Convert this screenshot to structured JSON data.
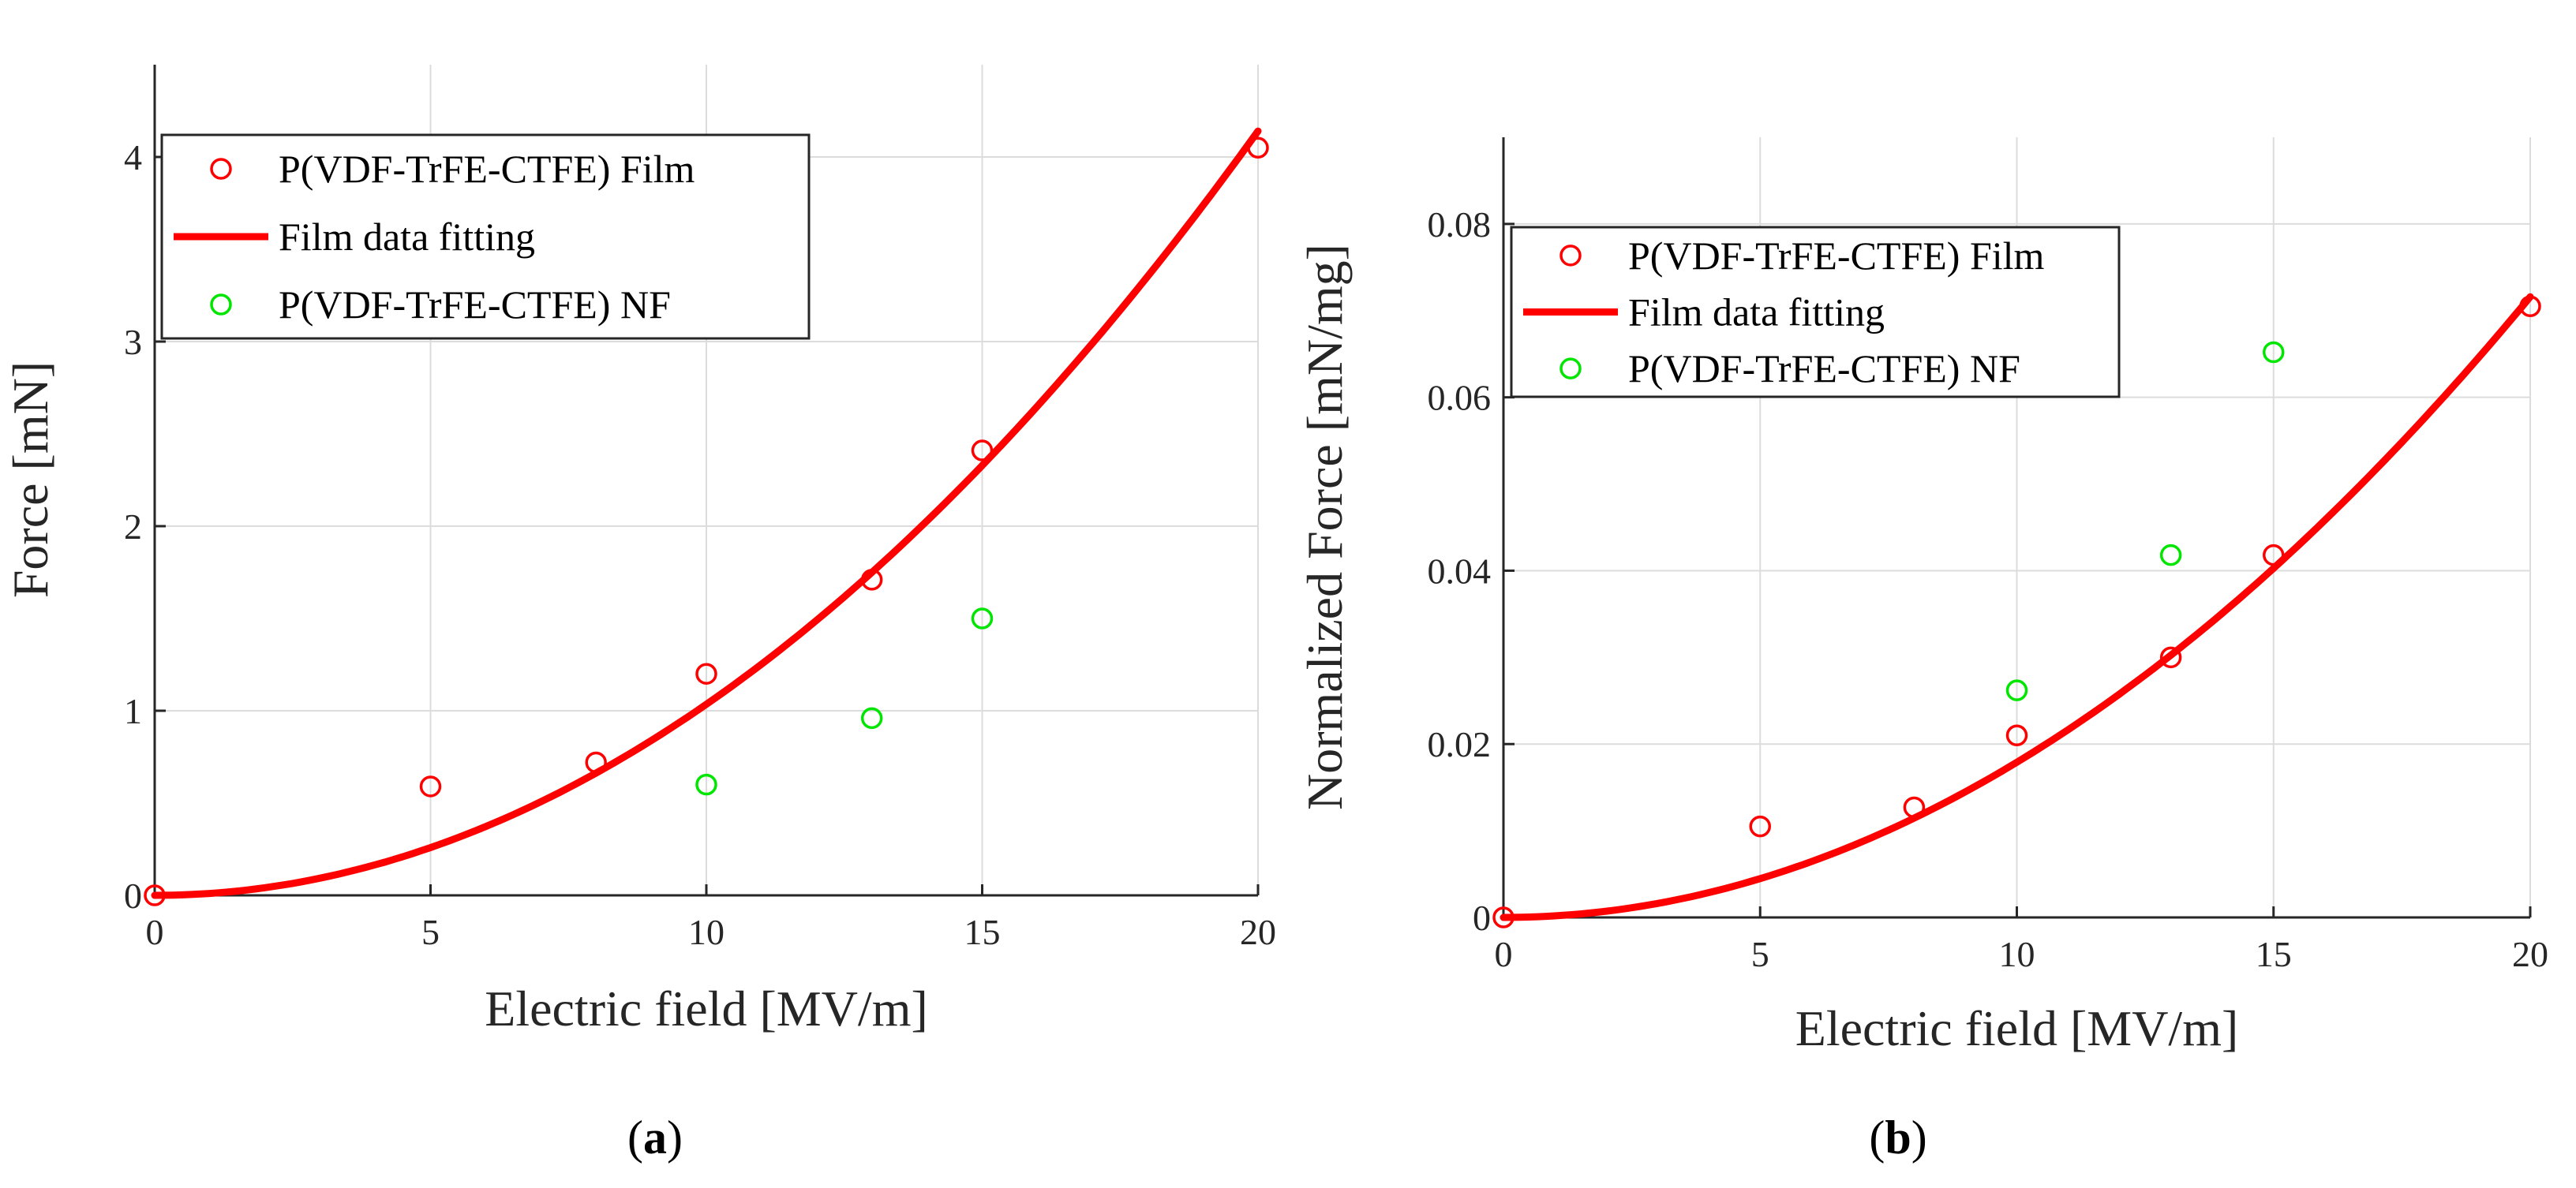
{
  "colors": {
    "film": "#ff0000",
    "nf": "#00e600",
    "fit": "#ff0000"
  },
  "chart_data": [
    {
      "type": "scatter",
      "panel_label": "a",
      "xlabel": "Electric field [MV/m]",
      "ylabel": "Force [mN]",
      "xlim": [
        0,
        20
      ],
      "ylim": [
        0,
        4.5
      ],
      "xticks": [
        "0",
        "5",
        "10",
        "15",
        "20"
      ],
      "yticks": [
        "0",
        "1",
        "2",
        "3",
        "4"
      ],
      "grid": true,
      "legend_position": "top-left",
      "legend": [
        "P(VDF-TrFE-CTFE) Film",
        "Film data fitting",
        "P(VDF-TrFE-CTFE) NF"
      ],
      "series": [
        {
          "name": "P(VDF-TrFE-CTFE) Film",
          "kind": "markers",
          "x": [
            0,
            5,
            8,
            10,
            13,
            15,
            20
          ],
          "y": [
            0,
            0.59,
            0.72,
            1.2,
            1.71,
            2.41,
            4.05
          ]
        },
        {
          "name": "Film data fitting",
          "kind": "line",
          "model": "a*x^2",
          "coefficient": 0.01035
        },
        {
          "name": "P(VDF-TrFE-CTFE) NF",
          "kind": "markers",
          "x": [
            10,
            13,
            15
          ],
          "y": [
            0.6,
            0.96,
            1.5
          ]
        }
      ]
    },
    {
      "type": "scatter",
      "panel_label": "b",
      "xlabel": "Electric field [MV/m]",
      "ylabel": "Normalized Force [mN/mg]",
      "xlim": [
        0,
        20
      ],
      "ylim": [
        0,
        0.09
      ],
      "xticks": [
        "0",
        "5",
        "10",
        "15",
        "20"
      ],
      "yticks": [
        "0",
        "0.02",
        "0.04",
        "0.06",
        "0.08"
      ],
      "grid": true,
      "legend_position": "top-left",
      "legend": [
        "P(VDF-TrFE-CTFE) Film",
        "Film data fitting",
        "P(VDF-TrFE-CTFE) NF"
      ],
      "series": [
        {
          "name": "P(VDF-TrFE-CTFE) Film",
          "kind": "markers",
          "x": [
            0,
            5,
            8,
            10,
            13,
            15,
            20
          ],
          "y": [
            0,
            0.0105,
            0.0127,
            0.021,
            0.03,
            0.0418,
            0.0705
          ]
        },
        {
          "name": "Film data fitting",
          "kind": "line",
          "model": "a*x^2",
          "coefficient": 0.000179
        },
        {
          "name": "P(VDF-TrFE-CTFE) NF",
          "kind": "markers",
          "x": [
            10,
            13,
            15
          ],
          "y": [
            0.0262,
            0.0418,
            0.0652
          ]
        }
      ]
    }
  ]
}
